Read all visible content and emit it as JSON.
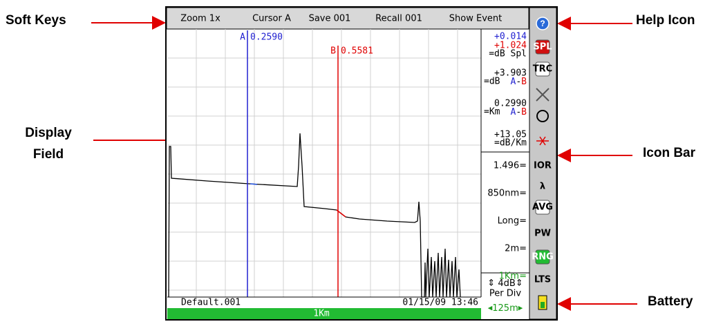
{
  "annotations": {
    "soft_keys": "Soft Keys",
    "display_field": [
      "Display",
      "Field"
    ],
    "help_icon": "Help Icon",
    "icon_bar": "Icon Bar",
    "battery": "Battery"
  },
  "soft_keys": [
    "Zoom 1x",
    "Cursor A",
    "Save 001",
    "Recall 001",
    "Show Event"
  ],
  "cursors": {
    "a_label": "A",
    "a_value": "0.2590",
    "b_label": "B",
    "b_value": "0.5581"
  },
  "readouts": {
    "spl_a": "+0.014",
    "spl_b": "+1.024",
    "spl_unit": "=dB Spl",
    "ab_loss": "+3.903",
    "ab_loss_unit": "=dB",
    "ab_dist": "0.2990",
    "ab_dist_unit": "=Km",
    "atten": "+13.05",
    "atten_unit": "=dB/Km",
    "a": "A",
    "dash": "-",
    "b": "B"
  },
  "settings": [
    "1.496=",
    "850nm=",
    "Long=",
    "2m=",
    "1Km="
  ],
  "scale": {
    "value": "4dB",
    "per_div": "Per Div",
    "step": "125m"
  },
  "icons": [
    "SPL",
    "TRC",
    "IOR",
    "λ",
    "AVG",
    "PW",
    "RNG",
    "LTS"
  ],
  "status": {
    "file": "Default.001",
    "datetime": "01/15/09 13:46",
    "range": "1Km"
  }
}
